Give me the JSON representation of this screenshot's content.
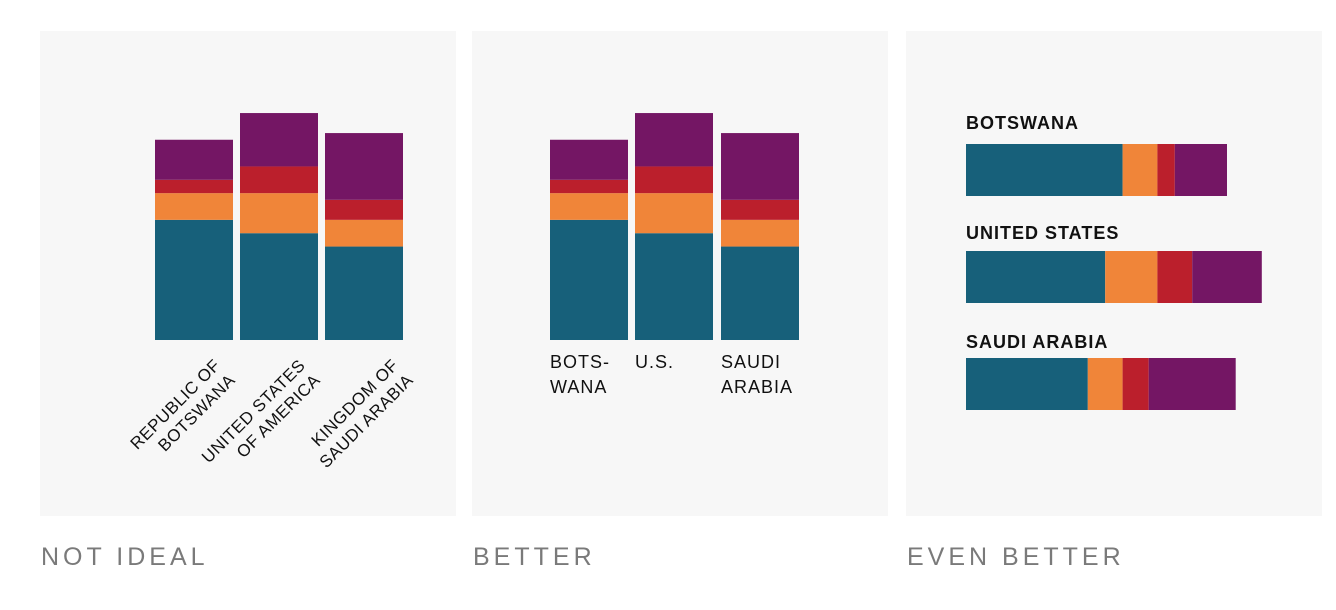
{
  "colors": {
    "teal": "#17607a",
    "orange": "#f08539",
    "red": "#bb1f2c",
    "purple": "#741664",
    "panel_bg": "#f7f7f7"
  },
  "captions": [
    "NOT IDEAL",
    "BETTER",
    "EVEN BETTER"
  ],
  "labels": {
    "long": [
      [
        "REPUBLIC OF",
        "BOTSWANA"
      ],
      [
        "UNITED STATES",
        "OF AMERICA"
      ],
      [
        "KINGDOM OF",
        "SAUDI ARABIA"
      ]
    ],
    "short": [
      [
        "BOTS-",
        "WANA"
      ],
      [
        "U.S."
      ],
      [
        "SAUDI",
        "ARABIA"
      ]
    ],
    "horizontal": [
      "BOTSWANA",
      "UNITED STATES",
      "SAUDI ARABIA"
    ]
  },
  "chart_data": [
    {
      "type": "bar",
      "stacked": true,
      "orientation": "vertical",
      "categories": [
        "REPUBLIC OF BOTSWANA",
        "UNITED STATES OF AMERICA",
        "KINGDOM OF SAUDI ARABIA"
      ],
      "series": [
        {
          "color": "#17607a",
          "values": [
            45,
            40,
            35
          ]
        },
        {
          "color": "#f08539",
          "values": [
            10,
            15,
            10
          ]
        },
        {
          "color": "#bb1f2c",
          "values": [
            5,
            10,
            7.5
          ]
        },
        {
          "color": "#741664",
          "values": [
            15,
            20,
            25
          ]
        }
      ],
      "title": "NOT IDEAL"
    },
    {
      "type": "bar",
      "stacked": true,
      "orientation": "vertical",
      "categories": [
        "BOTS-WANA",
        "U.S.",
        "SAUDI ARABIA"
      ],
      "series": [
        {
          "color": "#17607a",
          "values": [
            45,
            40,
            35
          ]
        },
        {
          "color": "#f08539",
          "values": [
            10,
            15,
            10
          ]
        },
        {
          "color": "#bb1f2c",
          "values": [
            5,
            10,
            7.5
          ]
        },
        {
          "color": "#741664",
          "values": [
            15,
            20,
            25
          ]
        }
      ],
      "title": "BETTER"
    },
    {
      "type": "bar",
      "stacked": true,
      "orientation": "horizontal",
      "categories": [
        "BOTSWANA",
        "UNITED STATES",
        "SAUDI ARABIA"
      ],
      "series": [
        {
          "color": "#17607a",
          "values": [
            45,
            40,
            35
          ]
        },
        {
          "color": "#f08539",
          "values": [
            10,
            15,
            10
          ]
        },
        {
          "color": "#bb1f2c",
          "values": [
            5,
            10,
            7.5
          ]
        },
        {
          "color": "#741664",
          "values": [
            15,
            20,
            25
          ]
        }
      ],
      "title": "EVEN BETTER"
    }
  ]
}
